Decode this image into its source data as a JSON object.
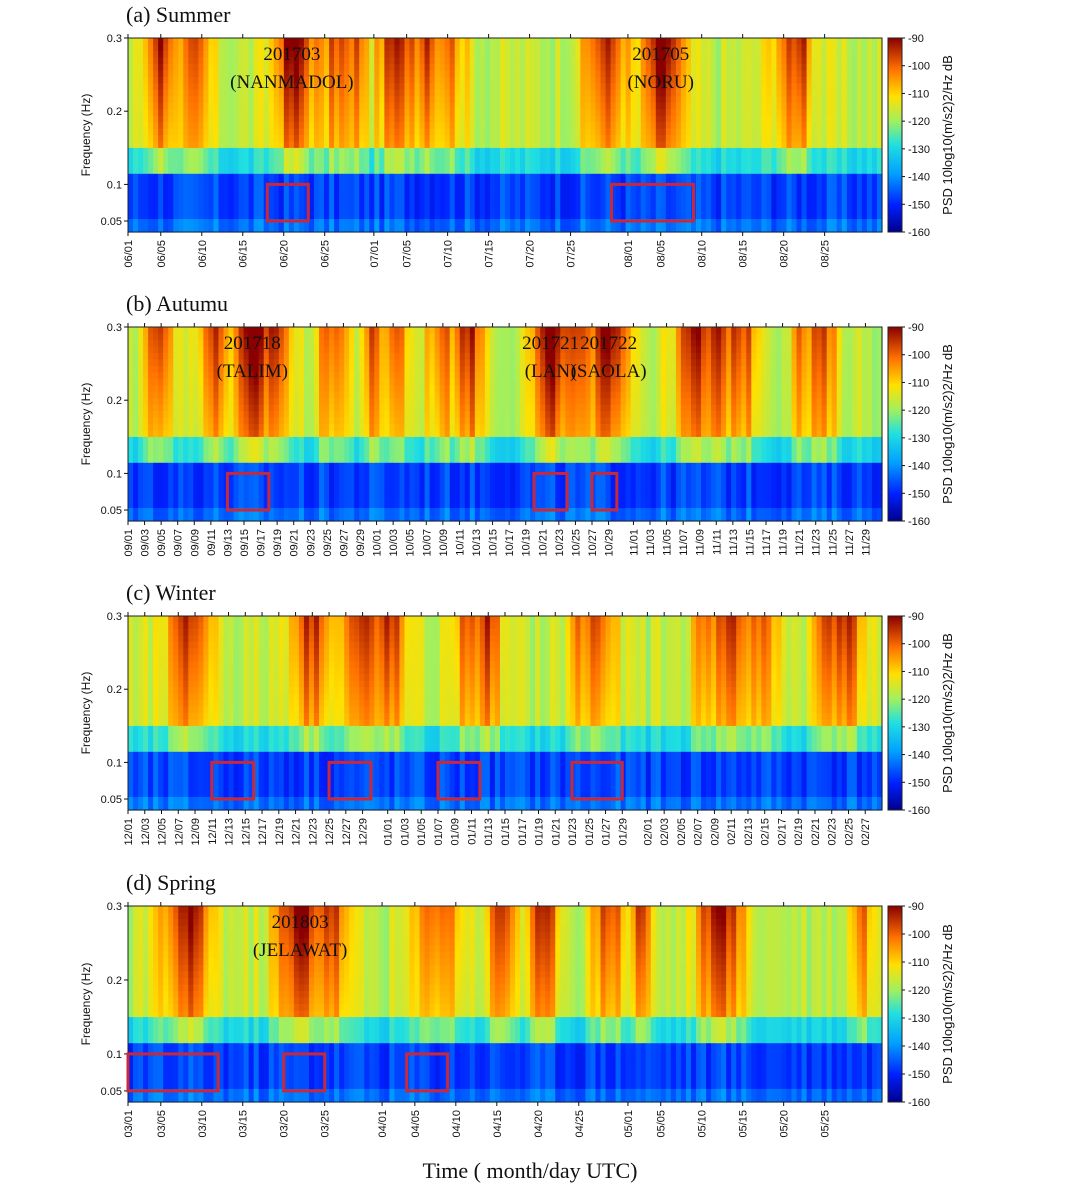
{
  "chart_data": [
    {
      "type": "heatmap",
      "title": "(a) Summer",
      "ylabel": "Frequency (Hz)",
      "yticks": [
        "0.3",
        "0.2",
        "0.1",
        "0.05"
      ],
      "ytick_values": [
        0.3,
        0.2,
        0.1,
        0.05
      ],
      "xticks": [
        "06/01",
        "06/05",
        "06/10",
        "06/15",
        "06/20",
        "06/25",
        "07/01",
        "07/05",
        "07/10",
        "07/15",
        "07/20",
        "07/25",
        "08/01",
        "08/05",
        "08/10",
        "08/15",
        "08/20",
        "08/25"
      ],
      "colorbar": {
        "label": "PSD 10log10(m/s2)2/Hz dB",
        "ticks": [
          "-90",
          "-100",
          "-110",
          "-120",
          "-130",
          "-140",
          "-150",
          "-160"
        ],
        "range": [
          -160,
          -90
        ]
      },
      "annotations": [
        {
          "text": "201703",
          "name": "(NANMADOL)",
          "date": "06/21"
        },
        {
          "text": "201705",
          "name": "(NORU)",
          "date": "08/05"
        }
      ],
      "highlight_boxes": [
        {
          "from": "06/18",
          "to": "06/23",
          "freq": [
            0.05,
            0.1
          ]
        },
        {
          "from": "07/30",
          "to": "08/09",
          "freq": [
            0.05,
            0.1
          ]
        }
      ]
    },
    {
      "type": "heatmap",
      "title": "(b) Autumu",
      "ylabel": "Frequency (Hz)",
      "yticks": [
        "0.3",
        "0.2",
        "0.1",
        "0.05"
      ],
      "ytick_values": [
        0.3,
        0.2,
        0.1,
        0.05
      ],
      "xticks": [
        "09/01",
        "09/03",
        "09/05",
        "09/07",
        "09/09",
        "09/11",
        "09/13",
        "09/15",
        "09/17",
        "09/19",
        "09/21",
        "09/23",
        "09/25",
        "09/27",
        "09/29",
        "10/01",
        "10/03",
        "10/05",
        "10/07",
        "10/09",
        "10/11",
        "10/13",
        "10/15",
        "10/17",
        "10/19",
        "10/21",
        "10/23",
        "10/25",
        "10/27",
        "10/29",
        "11/01",
        "11/03",
        "11/05",
        "11/07",
        "11/09",
        "11/11",
        "11/13",
        "11/15",
        "11/17",
        "11/19",
        "11/21",
        "11/23",
        "11/25",
        "11/27",
        "11/29"
      ],
      "colorbar": {
        "label": "PSD 10log10(m/s2)2/Hz dB",
        "ticks": [
          "-90",
          "-100",
          "-110",
          "-120",
          "-130",
          "-140",
          "-150",
          "-160"
        ],
        "range": [
          -160,
          -90
        ]
      },
      "annotations": [
        {
          "text": "201718",
          "name": "(TALIM)",
          "date": "09/16"
        },
        {
          "text": "201721",
          "name": "(LAN)",
          "date": "10/22"
        },
        {
          "text": "201722",
          "name": "(SAOLA)",
          "date": "10/29"
        }
      ],
      "highlight_boxes": [
        {
          "from": "09/13",
          "to": "09/18",
          "freq": [
            0.05,
            0.1
          ]
        },
        {
          "from": "10/20",
          "to": "10/24",
          "freq": [
            0.05,
            0.1
          ]
        },
        {
          "from": "10/27",
          "to": "10/30",
          "freq": [
            0.05,
            0.1
          ]
        }
      ]
    },
    {
      "type": "heatmap",
      "title": "(c) Winter",
      "ylabel": "Frequency (Hz)",
      "yticks": [
        "0.3",
        "0.2",
        "0.1",
        "0.05"
      ],
      "ytick_values": [
        0.3,
        0.2,
        0.1,
        0.05
      ],
      "xticks": [
        "12/01",
        "12/03",
        "12/05",
        "12/07",
        "12/09",
        "12/11",
        "12/13",
        "12/15",
        "12/17",
        "12/19",
        "12/21",
        "12/23",
        "12/25",
        "12/27",
        "12/29",
        "01/01",
        "01/03",
        "01/05",
        "01/07",
        "01/09",
        "01/11",
        "01/13",
        "01/15",
        "01/17",
        "01/19",
        "01/21",
        "01/23",
        "01/25",
        "01/27",
        "01/29",
        "02/01",
        "02/03",
        "02/05",
        "02/07",
        "02/09",
        "02/11",
        "02/13",
        "02/15",
        "02/17",
        "02/19",
        "02/21",
        "02/23",
        "02/25",
        "02/27"
      ],
      "colorbar": {
        "label": "PSD 10log10(m/s2)2/Hz dB",
        "ticks": [
          "-90",
          "-100",
          "-110",
          "-120",
          "-130",
          "-140",
          "-150",
          "-160"
        ],
        "range": [
          -160,
          -90
        ]
      },
      "annotations": [],
      "highlight_boxes": [
        {
          "from": "12/11",
          "to": "12/16",
          "freq": [
            0.05,
            0.1
          ]
        },
        {
          "from": "12/25",
          "to": "12/30",
          "freq": [
            0.05,
            0.1
          ]
        },
        {
          "from": "01/07",
          "to": "01/12",
          "freq": [
            0.05,
            0.1
          ]
        },
        {
          "from": "01/23",
          "to": "01/29",
          "freq": [
            0.05,
            0.1
          ]
        }
      ]
    },
    {
      "type": "heatmap",
      "title": "(d) Spring",
      "ylabel": "Frequency (Hz)",
      "yticks": [
        "0.3",
        "0.2",
        "0.1",
        "0.05"
      ],
      "ytick_values": [
        0.3,
        0.2,
        0.1,
        0.05
      ],
      "xticks": [
        "03/01",
        "03/05",
        "03/10",
        "03/15",
        "03/20",
        "03/25",
        "04/01",
        "04/05",
        "04/10",
        "04/15",
        "04/20",
        "04/25",
        "05/01",
        "05/05",
        "05/10",
        "05/15",
        "05/20",
        "05/25"
      ],
      "colorbar": {
        "label": "PSD 10log10(m/s2)2/Hz dB",
        "ticks": [
          "-90",
          "-100",
          "-110",
          "-120",
          "-130",
          "-140",
          "-150",
          "-160"
        ],
        "range": [
          -160,
          -90
        ]
      },
      "annotations": [
        {
          "text": "201803",
          "name": "(JELAWAT)",
          "date": "03/22"
        }
      ],
      "highlight_boxes": [
        {
          "from": "03/01",
          "to": "03/12",
          "freq": [
            0.05,
            0.1
          ]
        },
        {
          "from": "03/20",
          "to": "03/25",
          "freq": [
            0.05,
            0.1
          ]
        },
        {
          "from": "04/04",
          "to": "04/09",
          "freq": [
            0.05,
            0.1
          ]
        }
      ]
    }
  ],
  "xlabel": "Time ( month/day UTC)",
  "colors": {
    "box": "#c8283c",
    "tick": "#111111"
  }
}
